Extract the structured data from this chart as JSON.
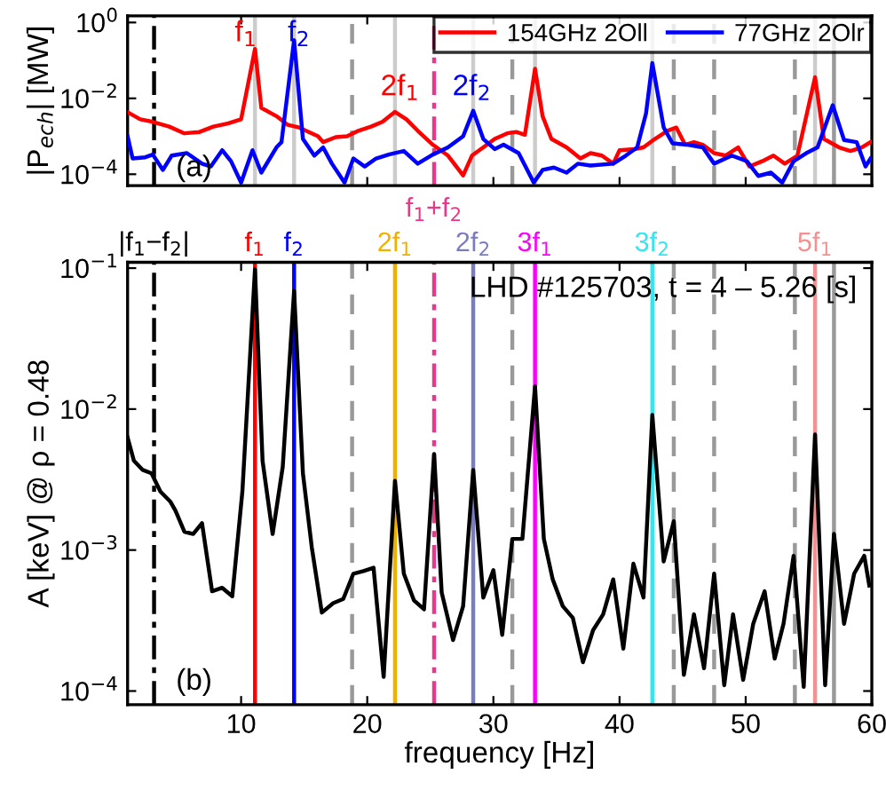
{
  "chart_data": [
    {
      "type": "line",
      "ylabel": "|P$_{ech}$| [MW]",
      "log": "y",
      "xlim": [
        1,
        60
      ],
      "xticks": [
        10,
        20,
        30,
        40,
        50,
        60
      ],
      "ylim": [
        5e-05,
        1.5
      ],
      "yticks": [
        {
          "value": 1,
          "label": "10$^{0}$"
        },
        {
          "value": 0.01,
          "label": "10$^{−2}$"
        },
        {
          "value": 0.0001,
          "label": "10$^{−4}$"
        }
      ],
      "tick_labels": "y",
      "legend": "top right",
      "grid": false,
      "series": [
        {
          "name": "154GHz 2Oll",
          "color": "#ff0000",
          "x": [
            1.0,
            2.0,
            3.0,
            4.3,
            5.5,
            6.7,
            7.8,
            9.0,
            10.0,
            11.1,
            11.6,
            12.8,
            13.7,
            14.6,
            16.1,
            16.5,
            17.5,
            18.4,
            19.3,
            20.3,
            21.2,
            22.2,
            23.1,
            24.0,
            25.2,
            26.4,
            27.6,
            28.3,
            29.2,
            30.1,
            31.1,
            31.8,
            32.5,
            33.3,
            33.9,
            34.6,
            35.8,
            36.9,
            37.7,
            38.6,
            39.5,
            40.0,
            41.2,
            41.9,
            42.8,
            43.8,
            44.5,
            45.2,
            45.9,
            46.6,
            47.5,
            48.4,
            49.4,
            50.3,
            51.3,
            52.2,
            53.1,
            54.1,
            55.5,
            56.2,
            57.4,
            58.3,
            59.2,
            59.9
          ],
          "values": [
            0.0043,
            0.0028,
            0.0024,
            0.0018,
            0.0012,
            0.0013,
            0.0018,
            0.0022,
            0.0028,
            0.2,
            0.0056,
            0.0034,
            0.002,
            0.0017,
            0.001,
            0.0007,
            0.00095,
            0.001,
            0.0014,
            0.0018,
            0.0024,
            0.0044,
            0.0028,
            0.0014,
            0.0006,
            0.00031,
            9.3e-05,
            0.00031,
            0.00051,
            0.00085,
            0.0012,
            0.0013,
            0.0011,
            0.06,
            0.0034,
            0.00085,
            0.00051,
            0.00026,
            0.00036,
            0.00031,
            0.00019,
            0.00043,
            0.00046,
            0.00051,
            0.00085,
            0.0014,
            0.0017,
            0.0006,
            0.0007,
            0.0006,
            0.00036,
            0.00031,
            0.00051,
            0.00016,
            0.00022,
            0.00031,
            0.00019,
            0.00031,
            0.036,
            0.00085,
            0.00051,
            0.00041,
            0.00051,
            0.0007
          ]
        },
        {
          "name": "77GHz 2Olr",
          "color": "#0000ff",
          "x": [
            1.0,
            1.4,
            2.4,
            3.0,
            3.8,
            4.5,
            5.7,
            6.9,
            7.6,
            8.5,
            9.2,
            10.0,
            10.9,
            11.6,
            12.8,
            13.2,
            14.2,
            14.9,
            15.8,
            16.5,
            17.2,
            18.2,
            18.9,
            19.8,
            20.7,
            21.7,
            22.9,
            24.0,
            25.2,
            26.4,
            27.6,
            28.4,
            29.2,
            30.1,
            30.8,
            32.0,
            33.2,
            33.9,
            34.8,
            35.8,
            36.7,
            37.7,
            39.5,
            40.5,
            41.4,
            42.1,
            42.6,
            43.5,
            44.2,
            45.4,
            46.6,
            47.5,
            48.9,
            50.1,
            51.0,
            52.0,
            52.9,
            53.8,
            54.8,
            55.7,
            56.9,
            57.8,
            58.8,
            59.5,
            59.9
          ],
          "values": [
            0.001,
            0.00026,
            0.00028,
            0.00033,
            0.00013,
            0.00031,
            0.00036,
            0.00019,
            0.00016,
            0.00043,
            0.00022,
            6e-05,
            0.00043,
            0.00011,
            0.00051,
            0.0007,
            0.34,
            0.00085,
            0.00031,
            0.00051,
            0.00019,
            6e-05,
            0.00026,
            0.00016,
            0.00026,
            0.00033,
            0.00041,
            0.00019,
            0.00033,
            0.00051,
            0.001,
            0.0047,
            0.00085,
            0.00046,
            0.0006,
            0.00036,
            6e-05,
            0.00013,
            0.00015,
            0.00011,
            0.00019,
            0.00017,
            0.00019,
            0.00031,
            0.00051,
            0.004,
            0.085,
            0.0017,
            0.00065,
            0.0006,
            0.00051,
            0.00019,
            0.00031,
            0.00022,
            9e-05,
            0.00011,
            6e-05,
            0.00022,
            0.00036,
            0.00051,
            0.0066,
            0.0008,
            0.0007,
            0.00016,
            0.00026
          ]
        }
      ],
      "ref_lines": [
        {
          "axis": "x",
          "value": 3.1,
          "color": "#000000",
          "line_style": "dashdot"
        },
        {
          "axis": "x",
          "value": 11.1,
          "color": "#cccccc",
          "line_style": "solid"
        },
        {
          "axis": "x",
          "value": 14.2,
          "color": "#cccccc",
          "line_style": "solid"
        },
        {
          "axis": "x",
          "value": 18.8,
          "color": "#999999",
          "line_style": "dashed"
        },
        {
          "axis": "x",
          "value": 22.2,
          "color": "#cccccc",
          "line_style": "solid"
        },
        {
          "axis": "x",
          "value": 25.3,
          "color": "#e8388a",
          "line_style": "dashdot"
        },
        {
          "axis": "x",
          "value": 28.4,
          "color": "#cccccc",
          "line_style": "solid"
        },
        {
          "axis": "x",
          "value": 31.5,
          "color": "#999999",
          "line_style": "dashed"
        },
        {
          "axis": "x",
          "value": 33.3,
          "color": "#cccccc",
          "line_style": "solid"
        },
        {
          "axis": "x",
          "value": 42.6,
          "color": "#cccccc",
          "line_style": "solid"
        },
        {
          "axis": "x",
          "value": 44.3,
          "color": "#999999",
          "line_style": "dashed"
        },
        {
          "axis": "x",
          "value": 47.5,
          "color": "#999999",
          "line_style": "dashed"
        },
        {
          "axis": "x",
          "value": 53.9,
          "color": "#999999",
          "line_style": "dashed"
        },
        {
          "axis": "x",
          "value": 55.5,
          "color": "#cccccc",
          "line_style": "solid"
        },
        {
          "axis": "x",
          "value": 57.0,
          "color": "#999999",
          "line_style": "solid"
        }
      ],
      "annotations": [
        {
          "text": "f$_{1}$",
          "x": 10.4,
          "y": 0.5
        },
        {
          "text": "f$_{2}$",
          "x": 14.6,
          "y": 0.5
        },
        {
          "text": "2f$_{1}$",
          "x": 22.6,
          "y": 0.019
        },
        {
          "text": "2f$_{2}$",
          "x": 28.3,
          "y": 0.019
        },
        "(a)"
      ]
    },
    {
      "type": "line",
      "xlabel": "frequency [Hz]",
      "ylabel": "A [keV] @ ρ = 0.48",
      "log": "y",
      "xlim": [
        1,
        60
      ],
      "xticks": [
        10,
        20,
        30,
        40,
        50,
        60
      ],
      "ylim": [
        8e-05,
        0.11
      ],
      "yticks": [
        {
          "value": 0.1,
          "label": "10$^{−1}$"
        },
        {
          "value": 0.01,
          "label": "10$^{−2}$"
        },
        {
          "value": 0.001,
          "label": "10$^{−3}$"
        },
        {
          "value": 0.0001,
          "label": "10$^{−4}$"
        }
      ],
      "grid": false,
      "series": [
        {
          "color": "#000000",
          "x": [
            1.0,
            1.5,
            2.2,
            2.9,
            3.6,
            4.4,
            4.8,
            5.5,
            6.2,
            6.9,
            7.7,
            8.5,
            9.3,
            10.1,
            11.1,
            11.7,
            12.5,
            13.3,
            14.2,
            14.9,
            15.6,
            16.4,
            17.3,
            18.1,
            18.9,
            19.7,
            20.5,
            21.3,
            22.2,
            22.9,
            23.7,
            24.5,
            25.3,
            25.9,
            26.8,
            27.6,
            28.4,
            29.2,
            30.0,
            30.7,
            31.5,
            32.3,
            33.3,
            34.0,
            34.7,
            35.5,
            36.3,
            37.1,
            37.9,
            38.7,
            39.5,
            40.3,
            41.1,
            41.9,
            42.6,
            43.5,
            44.3,
            45.1,
            45.9,
            46.7,
            47.5,
            48.3,
            49.0,
            49.8,
            50.6,
            51.5,
            52.3,
            53.0,
            53.8,
            54.6,
            55.5,
            56.3,
            57.0,
            57.8,
            58.6,
            59.4,
            59.8
          ],
          "values": [
            0.0063,
            0.0043,
            0.0037,
            0.0035,
            0.0026,
            0.0022,
            0.0019,
            0.00135,
            0.0013,
            0.00155,
            0.00051,
            0.00054,
            0.00047,
            0.0026,
            0.098,
            0.0043,
            0.0013,
            0.0039,
            0.069,
            0.0035,
            0.00105,
            0.00036,
            0.00042,
            0.00045,
            0.00068,
            0.00071,
            0.00075,
            0.000126,
            0.0031,
            0.00068,
            0.00044,
            0.00038,
            0.0048,
            0.0005,
            0.00023,
            0.0004,
            0.0037,
            0.00046,
            0.00072,
            0.00025,
            0.0012,
            0.0012,
            0.0145,
            0.0012,
            0.00062,
            0.0004,
            0.00033,
            0.00016,
            0.00027,
            0.00035,
            0.00062,
            0.0002,
            0.0008,
            0.00046,
            0.0091,
            0.00083,
            0.0016,
            0.00013,
            0.00035,
            0.000145,
            0.00068,
            0.00011,
            0.00035,
            0.00012,
            0.0003,
            0.00051,
            0.00017,
            0.0003,
            0.00091,
            0.000107,
            0.0066,
            0.00011,
            0.0013,
            0.0003,
            0.00068,
            0.00091,
            0.00056
          ]
        }
      ],
      "ref_lines": [
        {
          "axis": "x",
          "value": 3.1,
          "label": "|f$_{1}$−f$_{2}$|",
          "color": "#000000",
          "line_style": "dashdot"
        },
        {
          "axis": "x",
          "value": 11.1,
          "label": "f$_{1}$",
          "color": "#ff0000",
          "line_style": "solid"
        },
        {
          "axis": "x",
          "value": 14.2,
          "label": "f$_{2}$",
          "color": "#0000ff",
          "line_style": "solid"
        },
        {
          "axis": "x",
          "value": 18.8,
          "color": "#999999",
          "line_style": "dashed"
        },
        {
          "axis": "x",
          "value": 22.2,
          "label": "2f$_{1}$",
          "color": "#f0b000",
          "line_style": "solid"
        },
        {
          "axis": "x",
          "value": 25.3,
          "label": "f$_{1}$+f$_{2}$",
          "color": "#e8388a",
          "line_style": "dashdot"
        },
        {
          "axis": "x",
          "value": 28.4,
          "label": "2f$_{2}$",
          "color": "#7b7bbf",
          "line_style": "solid"
        },
        {
          "axis": "x",
          "value": 31.5,
          "color": "#999999",
          "line_style": "dashed"
        },
        {
          "axis": "x",
          "value": 33.3,
          "label": "3f$_{1}$",
          "color": "#ff00ff",
          "line_style": "solid"
        },
        {
          "axis": "x",
          "value": 42.6,
          "label": "3f$_{2}$",
          "color": "#33e6f0",
          "line_style": "solid"
        },
        {
          "axis": "x",
          "value": 44.3,
          "color": "#999999",
          "line_style": "dashed"
        },
        {
          "axis": "x",
          "value": 47.5,
          "color": "#999999",
          "line_style": "dashed"
        },
        {
          "axis": "x",
          "value": 53.9,
          "color": "#999999",
          "line_style": "dashed"
        },
        {
          "axis": "x",
          "value": 55.5,
          "label": "5f$_{1}$",
          "color": "#f49090",
          "line_style": "solid"
        },
        {
          "axis": "x",
          "value": 57.0,
          "color": "#999999",
          "line_style": "solid"
        }
      ],
      "annotations": [
        "LHD #125703, t = 4 – 5.26 [s]",
        "(b)"
      ]
    }
  ]
}
